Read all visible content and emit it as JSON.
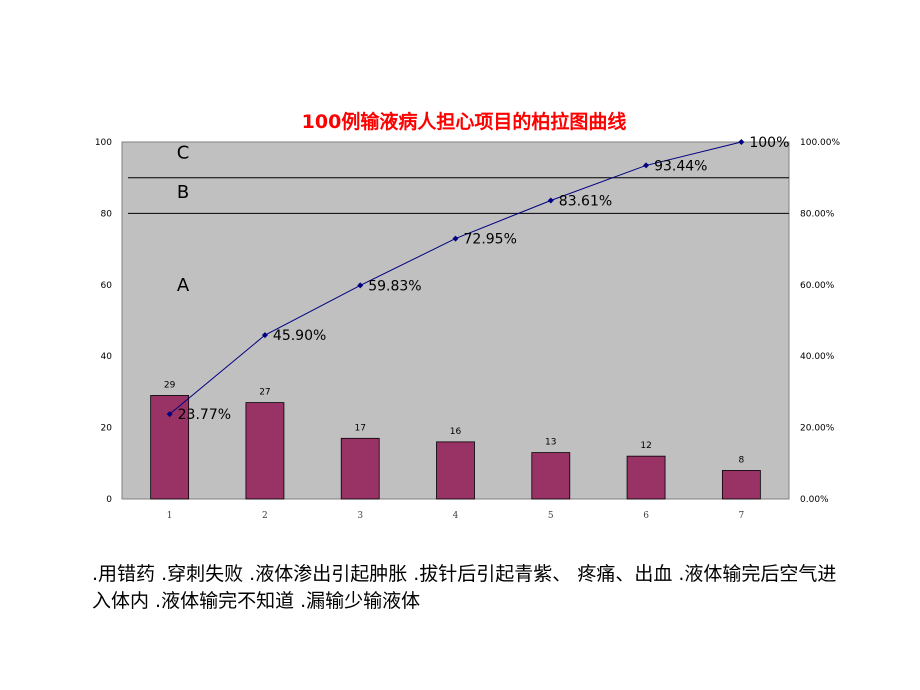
{
  "chart_data": {
    "type": "bar",
    "title": "100例输液病人担心项目的柏拉图曲线",
    "categories": [
      "1",
      "2",
      "3",
      "4",
      "5",
      "6",
      "7"
    ],
    "values": [
      29,
      27,
      17,
      16,
      13,
      12,
      8
    ],
    "cumulative_labels": [
      "23.77%",
      "45.90%",
      "59.83%",
      "72.95%",
      "83.61%",
      "93.44%",
      "100%"
    ],
    "cumulative_values": [
      23.77,
      45.9,
      59.83,
      72.95,
      83.61,
      93.44,
      100
    ],
    "ylim": [
      0,
      100
    ],
    "y_ticks": [
      "0",
      "20",
      "40",
      "60",
      "80",
      "100"
    ],
    "y2_ticks": [
      "0.00%",
      "20.00%",
      "40.00%",
      "60.00%",
      "80.00%",
      "100.00%"
    ],
    "zones": [
      {
        "label": "A",
        "y": 60
      },
      {
        "label": "B",
        "y": 86
      },
      {
        "label": "C",
        "y": 97
      }
    ],
    "zone_lines": [
      80,
      90
    ],
    "colors": {
      "bar": "#993366",
      "line": "#000080",
      "plot_bg": "#c0c0c0",
      "title": "#ff0000"
    },
    "grid": false
  },
  "caption": ".用错药 .穿刺失败 .液体渗出引起肿胀 .拔针后引起青紫、 疼痛、出血 .液体输完后空气进入体内 .液体输完不知道 .漏输少输液体"
}
